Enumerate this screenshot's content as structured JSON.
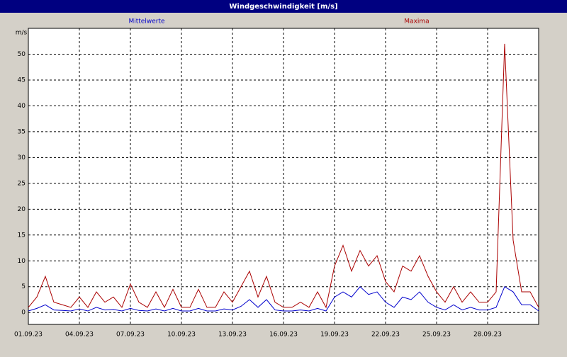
{
  "chart_data": {
    "type": "line",
    "title": "Windgeschwindigkeit [m/s]",
    "y_label": "m/s",
    "x": [
      0,
      0.5,
      1,
      1.5,
      2,
      2.5,
      3,
      3.5,
      4,
      4.5,
      5,
      5.5,
      6,
      6.5,
      7,
      7.5,
      8,
      8.5,
      9,
      9.5,
      10,
      10.5,
      11,
      11.5,
      12,
      12.5,
      13,
      13.5,
      14,
      14.5,
      15,
      15.5,
      16,
      16.5,
      17,
      17.5,
      18,
      18.5,
      19,
      19.5,
      20,
      20.5,
      21,
      21.5,
      22,
      22.5,
      23,
      23.5,
      24,
      24.5,
      25,
      25.5,
      26,
      26.5,
      27,
      27.5,
      28,
      28.5,
      29,
      29.5,
      30
    ],
    "series": [
      {
        "name": "Mittelwerte",
        "color": "#0000cc",
        "values": [
          0.3,
          0.8,
          1.5,
          0.5,
          0.4,
          0.3,
          0.7,
          0.3,
          1,
          0.5,
          0.6,
          0.3,
          0.8,
          0.4,
          0.3,
          0.7,
          0.3,
          0.8,
          0.3,
          0.3,
          0.8,
          0.3,
          0.3,
          0.7,
          0.5,
          1.2,
          2.5,
          1,
          2.5,
          0.5,
          0.3,
          0.3,
          0.5,
          0.3,
          0.8,
          0.3,
          3,
          4,
          3,
          5,
          3.5,
          4,
          2,
          1,
          3,
          2.5,
          4,
          2,
          1,
          0.5,
          1.5,
          0.5,
          1,
          0.5,
          0.5,
          1,
          5,
          4,
          1.5,
          1.5,
          0.3
        ]
      },
      {
        "name": "Maxima",
        "color": "#aa0000",
        "values": [
          1,
          3,
          7,
          2,
          1.5,
          1,
          3,
          1,
          4,
          2,
          3,
          1,
          5.5,
          2,
          1,
          4,
          1,
          4.5,
          1,
          1,
          4.5,
          1,
          1,
          4,
          2,
          5,
          8,
          3,
          7,
          2,
          1,
          1,
          2,
          1,
          4,
          1,
          9,
          13,
          8,
          12,
          9,
          11,
          6,
          4,
          9,
          8,
          11,
          7,
          4,
          2,
          5,
          2,
          4,
          2,
          2,
          4,
          52,
          14,
          4,
          4,
          1
        ]
      }
    ],
    "xlim": [
      0,
      30
    ],
    "xticks": [
      {
        "value": 0,
        "label": "01.09.23"
      },
      {
        "value": 3,
        "label": "04.09.23"
      },
      {
        "value": 6,
        "label": "07.09.23"
      },
      {
        "value": 9,
        "label": "10.09.23"
      },
      {
        "value": 12,
        "label": "13.09.23"
      },
      {
        "value": 15,
        "label": "16.09.23"
      },
      {
        "value": 18,
        "label": "19.09.23"
      },
      {
        "value": 21,
        "label": "22.09.23"
      },
      {
        "value": 24,
        "label": "25.09.23"
      },
      {
        "value": 27,
        "label": "28.09.23"
      }
    ],
    "ylim": [
      -2.3,
      55
    ],
    "yticks": [
      0,
      5,
      10,
      15,
      20,
      25,
      30,
      35,
      40,
      45,
      50
    ],
    "grid": true
  }
}
